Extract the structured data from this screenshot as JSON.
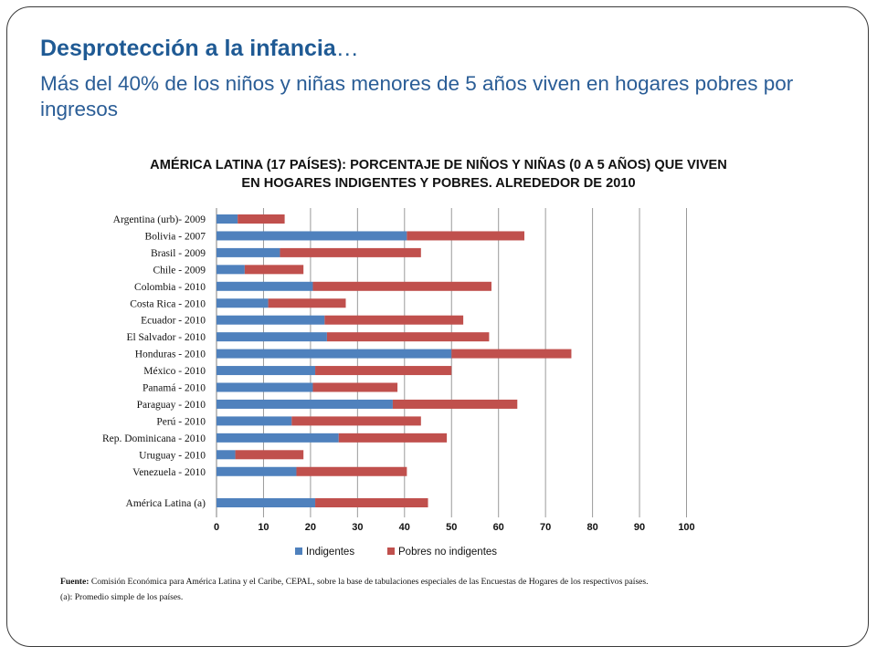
{
  "slide": {
    "title_main": "Desprotección a la infancia",
    "title_ellipsis": "…",
    "subtitle": "Más del 40% de los niños y niñas menores de 5 años viven en hogares pobres por ingresos",
    "chart_heading_line1": "AMÉRICA LATINA (17 PAÍSES): PORCENTAJE DE NIÑOS Y NIÑAS (0 A 5 AÑOS) QUE VIVEN",
    "chart_heading_line2": "EN HOGARES INDIGENTES Y POBRES. ALREDEDOR DE 2010",
    "source_label": "Fuente:",
    "source_text": "Comisión Económica para América Latina y el Caribe, CEPAL, sobre la base de tabulaciones especiales de las Encuestas de Hogares de los respectivos países.",
    "note_text": "(a): Promedio simple de los países."
  },
  "chart_data": {
    "type": "bar",
    "orientation": "horizontal",
    "stacked": true,
    "categories": [
      "Argentina (urb)- 2009",
      "Bolivia - 2007",
      "Brasil - 2009",
      "Chile - 2009",
      "Colombia - 2010",
      "Costa Rica - 2010",
      "Ecuador - 2010",
      "El Salvador - 2010",
      "Honduras - 2010",
      "México - 2010",
      "Panamá - 2010",
      "Paraguay - 2010",
      "Perú - 2010",
      "Rep. Dominicana - 2010",
      "Uruguay - 2010",
      "Venezuela - 2010",
      "América Latina (a)"
    ],
    "series": [
      {
        "name": "Indigentes",
        "color": "#4f81bd",
        "values": [
          4.5,
          40.5,
          13.5,
          6,
          20.5,
          11,
          23,
          23.5,
          50,
          21,
          20.5,
          37.5,
          16,
          26,
          4,
          17,
          21
        ]
      },
      {
        "name": "Pobres no indigentes",
        "color": "#c0504d",
        "values": [
          10,
          25,
          30,
          12.5,
          38,
          16.5,
          29.5,
          34.5,
          25.5,
          29,
          18,
          26.5,
          27.5,
          23,
          14.5,
          23.5,
          24
        ]
      }
    ],
    "x_ticks": [
      0,
      10,
      20,
      30,
      40,
      50,
      60,
      70,
      80,
      90,
      100
    ],
    "xlim": [
      0,
      100
    ],
    "grid": true,
    "legend_position": "bottom"
  }
}
